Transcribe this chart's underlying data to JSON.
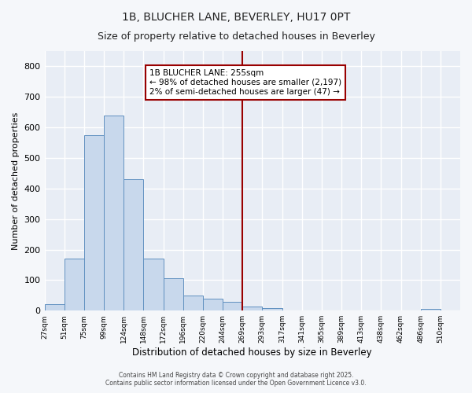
{
  "title1": "1B, BLUCHER LANE, BEVERLEY, HU17 0PT",
  "title2": "Size of property relative to detached houses in Beverley",
  "xlabel": "Distribution of detached houses by size in Beverley",
  "ylabel": "Number of detached properties",
  "bar_color": "#c8d8ec",
  "bar_edge_color": "#6090c0",
  "plot_bg_color": "#e8edf5",
  "fig_bg_color": "#f5f7fa",
  "grid_color": "#ffffff",
  "bins": [
    "27sqm",
    "51sqm",
    "75sqm",
    "99sqm",
    "124sqm",
    "148sqm",
    "172sqm",
    "196sqm",
    "220sqm",
    "244sqm",
    "269sqm",
    "293sqm",
    "317sqm",
    "341sqm",
    "365sqm",
    "389sqm",
    "413sqm",
    "438sqm",
    "462sqm",
    "486sqm",
    "510sqm"
  ],
  "values": [
    20,
    170,
    575,
    640,
    430,
    170,
    105,
    50,
    38,
    30,
    13,
    8,
    0,
    0,
    0,
    0,
    0,
    0,
    0,
    5,
    0
  ],
  "vline_x_index": 9.5,
  "vline_color": "#990000",
  "annotation_title": "1B BLUCHER LANE: 255sqm",
  "annotation_line1": "← 98% of detached houses are smaller (2,197)",
  "annotation_line2": "2% of semi-detached houses are larger (47) →",
  "annotation_box_facecolor": "#ffffff",
  "annotation_box_edgecolor": "#990000",
  "footer1": "Contains HM Land Registry data © Crown copyright and database right 2025.",
  "footer2": "Contains public sector information licensed under the Open Government Licence v3.0.",
  "ylim": [
    0,
    850
  ],
  "yticks": [
    0,
    100,
    200,
    300,
    400,
    500,
    600,
    700,
    800
  ]
}
